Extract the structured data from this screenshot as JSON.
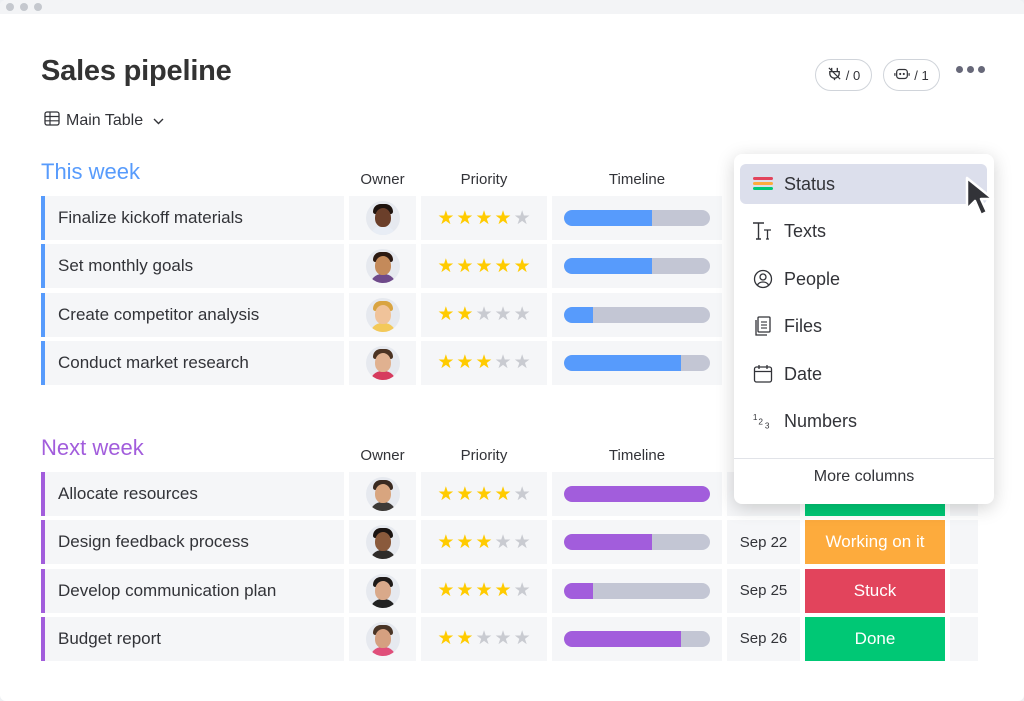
{
  "page": {
    "title": "Sales pipeline"
  },
  "header": {
    "integrations": {
      "icon": "integrations-icon",
      "count": "/ 0"
    },
    "automations": {
      "icon": "automations-icon",
      "count": "/ 1"
    },
    "more_icon": "more-dots-icon"
  },
  "view": {
    "label": "Main Table",
    "icon": "table-icon",
    "chevron": "chevron-down-icon"
  },
  "columns": {
    "owner": "Owner",
    "priority": "Priority",
    "timeline": "Timeline"
  },
  "groups": [
    {
      "title": "This week",
      "color": "#579bfc",
      "rows": [
        {
          "name": "Finalize kickoff materials",
          "priority": 4,
          "timeline_progress": 0.6
        },
        {
          "name": "Set monthly goals",
          "priority": 5,
          "timeline_progress": 0.6
        },
        {
          "name": "Create competitor analysis",
          "priority": 2,
          "timeline_progress": 0.2
        },
        {
          "name": "Conduct market research",
          "priority": 3,
          "timeline_progress": 0.8
        }
      ]
    },
    {
      "title": "Next week",
      "color": "#a25ddc",
      "rows": [
        {
          "name": "Allocate resources",
          "priority": 4,
          "timeline_progress": 1.0,
          "date": "",
          "status": "",
          "status_color": "#00c875"
        },
        {
          "name": "Design feedback process",
          "priority": 3,
          "timeline_progress": 0.6,
          "date": "Sep 22",
          "status": "Working on it",
          "status_color": "#fdab3d"
        },
        {
          "name": "Develop communication plan",
          "priority": 4,
          "timeline_progress": 0.2,
          "date": "Sep 25",
          "status": "Stuck",
          "status_color": "#e2445c"
        },
        {
          "name": "Budget report",
          "priority": 2,
          "timeline_progress": 0.8,
          "date": "Sep 26",
          "status": "Done",
          "status_color": "#00c875"
        }
      ]
    }
  ],
  "column_menu": {
    "items": [
      {
        "label": "Status",
        "icon": "status-icon"
      },
      {
        "label": "Texts",
        "icon": "text-icon"
      },
      {
        "label": "People",
        "icon": "person-icon"
      },
      {
        "label": "Files",
        "icon": "file-icon"
      },
      {
        "label": "Date",
        "icon": "calendar-icon"
      },
      {
        "label": "Numbers",
        "icon": "numbers-icon"
      }
    ],
    "more_label": "More columns"
  },
  "colors": {
    "star_on": "#ffcb00",
    "star_off": "#c9cbd1",
    "timeline_track": "#c3c6d4"
  }
}
